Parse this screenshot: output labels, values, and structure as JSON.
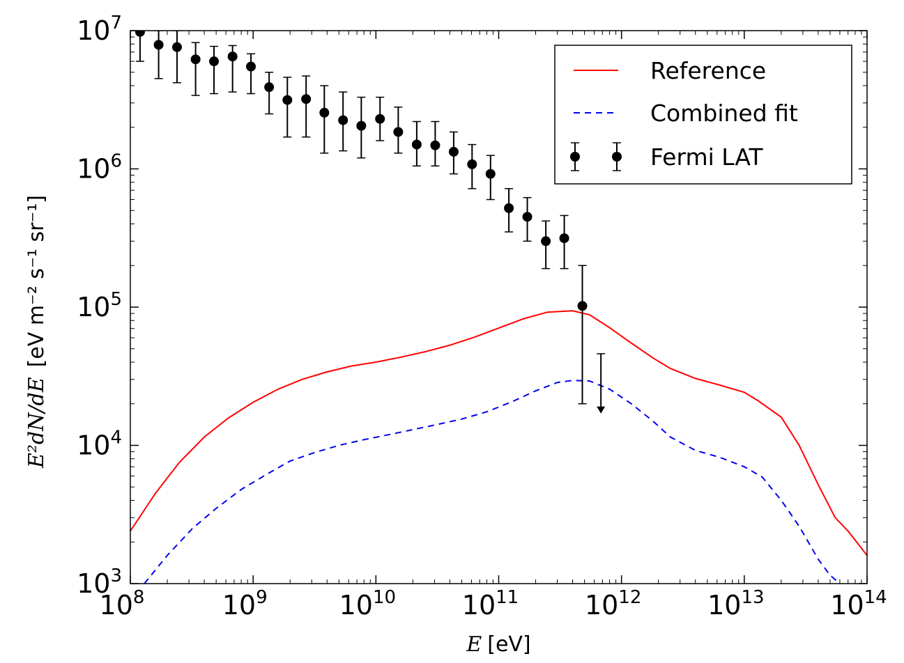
{
  "chart_data": {
    "type": "line",
    "xlabel": {
      "var": "E",
      "unit": "[eV]"
    },
    "ylabel": {
      "var": "E²dN/dE",
      "unit": "[eV m⁻² s⁻¹ sr⁻¹]"
    },
    "x_scale": "log",
    "y_scale": "log",
    "xlim": [
      100000000.0,
      100000000000000.0
    ],
    "ylim": [
      1000.0,
      10000000.0
    ],
    "x_ticks": [
      8,
      9,
      10,
      11,
      12,
      13,
      14
    ],
    "y_ticks": [
      3,
      4,
      5,
      6,
      7
    ],
    "tick_base": "10",
    "grid": false,
    "legend_position": "top-right",
    "series": [
      {
        "name": "Reference",
        "style": "solid",
        "color": "#ff0000",
        "x": [
          100000000.0,
          160000000.0,
          250000000.0,
          400000000.0,
          630000000.0,
          1000000000.0,
          1600000000.0,
          2500000000.0,
          4000000000.0,
          6300000000.0,
          10000000000.0,
          16000000000.0,
          25000000000.0,
          40000000000.0,
          63000000000.0,
          100000000000.0,
          160000000000.0,
          250000000000.0,
          400000000000.0,
          550000000000.0,
          800000000000.0,
          1200000000000.0,
          1800000000000.0,
          2500000000000.0,
          4000000000000.0,
          6300000000000.0,
          10000000000000.0,
          13000000000000.0,
          20000000000000.0,
          28000000000000.0,
          40000000000000.0,
          55000000000000.0,
          70000000000000.0,
          100000000000000.0
        ],
        "y": [
          2400,
          4500,
          7500,
          11500,
          15800,
          20500,
          25500,
          30000,
          34000,
          37500,
          40000,
          43500,
          47500,
          53000,
          60500,
          70500,
          82500,
          92000,
          94000,
          88000,
          71000,
          55000,
          43000,
          36000,
          30500,
          27300,
          24200,
          21000,
          16000,
          10000,
          5200,
          3000,
          2400,
          1600
        ]
      },
      {
        "name": "Combined fit",
        "style": "dashed",
        "color": "#0000ee",
        "x": [
          130000000.0,
          200000000.0,
          320000000.0,
          500000000.0,
          800000000.0,
          1300000000.0,
          2000000000.0,
          3200000000.0,
          5000000000.0,
          8000000000.0,
          13000000000.0,
          20000000000.0,
          32000000000.0,
          50000000000.0,
          80000000000.0,
          130000000000.0,
          200000000000.0,
          300000000000.0,
          400000000000.0,
          550000000000.0,
          800000000000.0,
          1200000000000.0,
          1800000000000.0,
          2500000000000.0,
          4000000000000.0,
          6300000000000.0,
          10000000000000.0,
          14000000000000.0,
          20000000000000.0,
          28000000000000.0,
          40000000000000.0,
          50000000000000.0,
          60000000000000.0
        ],
        "y": [
          1000,
          1600,
          2500,
          3500,
          4800,
          6200,
          7700,
          8900,
          10000,
          11000,
          12000,
          13000,
          14200,
          15500,
          17500,
          20800,
          24800,
          28500,
          29500,
          29200,
          25500,
          20000,
          15000,
          11500,
          9200,
          8200,
          7000,
          5900,
          4000,
          2600,
          1500,
          1150,
          1000
        ]
      }
    ],
    "points": {
      "name": "Fermi LAT",
      "color": "#000000",
      "x": [
        120000000.0,
        170000000.0,
        240000000.0,
        340000000.0,
        480000000.0,
        680000000.0,
        960000000.0,
        1350000000.0,
        1900000000.0,
        2700000000.0,
        3800000000.0,
        5400000000.0,
        7600000000.0,
        10800000000.0,
        15200000000.0,
        21500000000.0,
        30400000000.0,
        43000000000.0,
        60700000000.0,
        85800000000.0,
        121000000000.0,
        171000000000.0,
        242000000000.0,
        342000000000.0,
        480000000000.0
      ],
      "y": [
        9800000.0,
        7900000.0,
        7600000.0,
        6200000.0,
        6000000.0,
        6500000.0,
        5500000.0,
        3900000.0,
        3150000.0,
        3200000.0,
        2550000.0,
        2250000.0,
        2050000.0,
        2300000.0,
        1850000.0,
        1500000.0,
        1480000.0,
        1330000.0,
        1080000.0,
        920000.0,
        520000.0,
        450000.0,
        300000.0,
        315000.0,
        102000.0
      ],
      "yerr_low": [
        6000000.0,
        4500000.0,
        4200000.0,
        3400000.0,
        3500000.0,
        3600000.0,
        3500000.0,
        2500000.0,
        1700000.0,
        1700000.0,
        1300000.0,
        1350000.0,
        1200000.0,
        1600000.0,
        1300000.0,
        1050000.0,
        1050000.0,
        920000.0,
        720000.0,
        600000.0,
        350000.0,
        300000.0,
        190000.0,
        190000.0,
        20000.0
      ],
      "yerr_high": [
        11000000.0,
        10000000.0,
        10000000.0,
        8200000.0,
        7700000.0,
        7800000.0,
        6800000.0,
        5000000.0,
        4600000.0,
        4700000.0,
        4000000.0,
        3600000.0,
        3300000.0,
        3300000.0,
        2800000.0,
        2200000.0,
        2200000.0,
        1850000.0,
        1500000.0,
        1250000.0,
        720000.0,
        620000.0,
        420000.0,
        460000.0,
        200000.0
      ],
      "upper_limit": {
        "x": 680000000000.0,
        "y": 46000.0,
        "y_arrow_tip": 17000.0
      }
    }
  }
}
